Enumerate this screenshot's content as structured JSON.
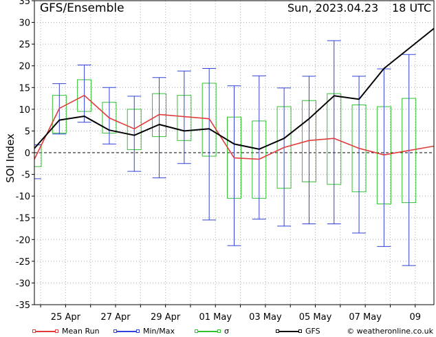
{
  "header": {
    "title": "GFS/Ensemble",
    "run": "Sun, 2023.04.23",
    "utc": "18 UTC"
  },
  "chart_data": {
    "type": "line",
    "title": "GFS/Ensemble",
    "ylabel": "SOI Index",
    "xlabel": "",
    "ylim": [
      -35,
      35
    ],
    "yticks": [
      -35,
      -30,
      -25,
      -20,
      -15,
      -10,
      -5,
      0,
      5,
      10,
      15,
      20,
      25,
      30,
      35
    ],
    "x_start": "2023-04-23T18:00",
    "x_end": "2023-05-09T18:00",
    "x_tick_labels": [
      {
        "date": "2023-04-25",
        "label": "25 Apr"
      },
      {
        "date": "2023-04-27",
        "label": "27 Apr"
      },
      {
        "date": "2023-04-29",
        "label": "29 Apr"
      },
      {
        "date": "2023-05-01",
        "label": "01 May"
      },
      {
        "date": "2023-05-03",
        "label": "03 May"
      },
      {
        "date": "2023-05-05",
        "label": "05 May"
      },
      {
        "date": "2023-05-07",
        "label": "07 May"
      },
      {
        "date": "2023-05-09",
        "label": "09"
      }
    ],
    "grid": true,
    "zero_line": true,
    "dates": [
      "2023-04-23T18:00",
      "2023-04-24T18:00",
      "2023-04-25T18:00",
      "2023-04-26T18:00",
      "2023-04-27T18:00",
      "2023-04-28T18:00",
      "2023-04-29T18:00",
      "2023-04-30T18:00",
      "2023-05-01T18:00",
      "2023-05-02T18:00",
      "2023-05-03T18:00",
      "2023-05-04T18:00",
      "2023-05-05T18:00",
      "2023-05-06T18:00",
      "2023-05-07T18:00",
      "2023-05-08T18:00",
      "2023-05-09T18:00"
    ],
    "series": [
      {
        "name": "Mean Run",
        "color": "#e03a3a",
        "values": [
          -1.5,
          10.2,
          13.2,
          8.0,
          5.5,
          8.8,
          8.3,
          7.8,
          -1.2,
          -1.5,
          1.2,
          2.8,
          3.3,
          1.0,
          -0.5,
          0.5,
          null
        ]
      },
      {
        "name": "GFS",
        "color": "#000000",
        "values": [
          1.0,
          7.5,
          8.4,
          5.2,
          4.0,
          6.5,
          5.0,
          5.5,
          2.0,
          0.8,
          3.3,
          7.8,
          13.1,
          12.3,
          19.4,
          24.0,
          null
        ]
      }
    ],
    "min_max": {
      "name": "Min/Max",
      "color": "#3040d8",
      "min": [
        -6.0,
        4.3,
        7.0,
        2.0,
        -4.3,
        -5.8,
        -2.5,
        -15.5,
        -21.4,
        -15.3,
        -16.9,
        -16.4,
        -16.4,
        -18.5,
        -21.6,
        -26.0,
        null
      ],
      "max": [
        1.8,
        15.9,
        20.2,
        15.0,
        13.0,
        17.3,
        18.8,
        19.4,
        15.4,
        17.7,
        14.9,
        17.6,
        25.8,
        17.6,
        19.3,
        22.6,
        null
      ]
    },
    "sigma": {
      "name": "σ",
      "color": "#30c030",
      "low": [
        -3.2,
        4.5,
        9.5,
        4.5,
        0.7,
        3.7,
        2.8,
        -0.8,
        -10.5,
        -10.5,
        -8.2,
        -6.7,
        -7.3,
        -9.0,
        -11.8,
        -11.5,
        null
      ],
      "high": [
        1.8,
        13.2,
        16.8,
        11.6,
        10.0,
        13.6,
        13.2,
        16.0,
        8.2,
        7.3,
        10.6,
        12.0,
        13.6,
        11.0,
        10.6,
        12.5,
        null
      ]
    }
  },
  "legend": {
    "items": [
      {
        "label": "Mean Run",
        "color": "#e03a3a"
      },
      {
        "label": "Min/Max",
        "color": "#3040d8"
      },
      {
        "label": "σ",
        "color": "#30c030"
      },
      {
        "label": "GFS",
        "color": "#000000"
      }
    ],
    "credit": "© weatheronline.co.uk"
  }
}
